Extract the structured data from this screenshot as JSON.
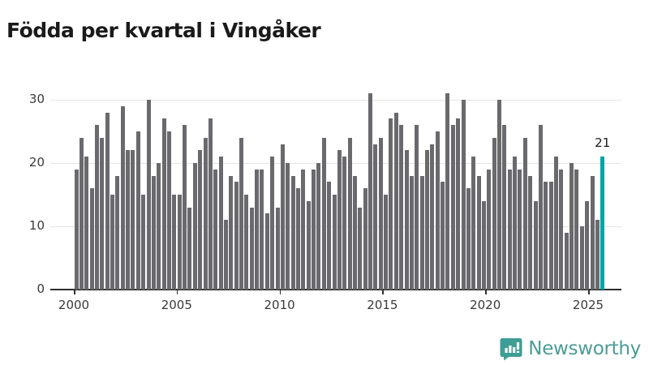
{
  "title": "Födda per kvartal i Vingåker",
  "chart_data": {
    "type": "bar",
    "title": "Födda per kvartal i Vingåker",
    "x_start": "2000-Q1",
    "x_end": "2025-Q3",
    "frequency": "quarterly",
    "categories": [
      "2000-Q1",
      "2000-Q2",
      "2000-Q3",
      "2000-Q4",
      "2001-Q1",
      "2001-Q2",
      "2001-Q3",
      "2001-Q4",
      "2002-Q1",
      "2002-Q2",
      "2002-Q3",
      "2002-Q4",
      "2003-Q1",
      "2003-Q2",
      "2003-Q3",
      "2003-Q4",
      "2004-Q1",
      "2004-Q2",
      "2004-Q3",
      "2004-Q4",
      "2005-Q1",
      "2005-Q2",
      "2005-Q3",
      "2005-Q4",
      "2006-Q1",
      "2006-Q2",
      "2006-Q3",
      "2006-Q4",
      "2007-Q1",
      "2007-Q2",
      "2007-Q3",
      "2007-Q4",
      "2008-Q1",
      "2008-Q2",
      "2008-Q3",
      "2008-Q4",
      "2009-Q1",
      "2009-Q2",
      "2009-Q3",
      "2009-Q4",
      "2010-Q1",
      "2010-Q2",
      "2010-Q3",
      "2010-Q4",
      "2011-Q1",
      "2011-Q2",
      "2011-Q3",
      "2011-Q4",
      "2012-Q1",
      "2012-Q2",
      "2012-Q3",
      "2012-Q4",
      "2013-Q1",
      "2013-Q2",
      "2013-Q3",
      "2013-Q4",
      "2014-Q1",
      "2014-Q2",
      "2014-Q3",
      "2014-Q4",
      "2015-Q1",
      "2015-Q2",
      "2015-Q3",
      "2015-Q4",
      "2016-Q1",
      "2016-Q2",
      "2016-Q3",
      "2016-Q4",
      "2017-Q1",
      "2017-Q2",
      "2017-Q3",
      "2017-Q4",
      "2018-Q1",
      "2018-Q2",
      "2018-Q3",
      "2018-Q4",
      "2019-Q1",
      "2019-Q2",
      "2019-Q3",
      "2019-Q4",
      "2020-Q1",
      "2020-Q2",
      "2020-Q3",
      "2020-Q4",
      "2021-Q1",
      "2021-Q2",
      "2021-Q3",
      "2021-Q4",
      "2022-Q1",
      "2022-Q2",
      "2022-Q3",
      "2022-Q4",
      "2023-Q1",
      "2023-Q2",
      "2023-Q3",
      "2023-Q4",
      "2024-Q1",
      "2024-Q2",
      "2024-Q3",
      "2024-Q4",
      "2025-Q1",
      "2025-Q2",
      "2025-Q3"
    ],
    "series": [
      {
        "name": "Födda",
        "values": [
          19,
          24,
          21,
          16,
          26,
          24,
          28,
          15,
          18,
          29,
          22,
          22,
          25,
          15,
          30,
          18,
          20,
          27,
          25,
          15,
          15,
          26,
          13,
          20,
          22,
          24,
          27,
          19,
          21,
          11,
          18,
          17,
          24,
          15,
          13,
          19,
          19,
          12,
          21,
          13,
          23,
          20,
          18,
          16,
          19,
          14,
          19,
          20,
          24,
          17,
          15,
          22,
          21,
          24,
          18,
          13,
          16,
          31,
          23,
          24,
          15,
          27,
          28,
          26,
          22,
          18,
          26,
          18,
          22,
          23,
          25,
          17,
          31,
          26,
          27,
          30,
          16,
          21,
          18,
          14,
          19,
          24,
          30,
          26,
          19,
          21,
          19,
          24,
          18,
          14,
          26,
          17,
          17,
          21,
          19,
          9,
          20,
          19,
          10,
          14,
          18,
          11,
          21
        ]
      }
    ],
    "highlight": {
      "index": 102,
      "value": 21,
      "label": "21"
    },
    "x_tick_labels": [
      "2000",
      "2005",
      "2010",
      "2015",
      "2020",
      "2025"
    ],
    "y_tick_labels": [
      "0",
      "10",
      "20",
      "30"
    ],
    "y_tick_values": [
      0,
      10,
      20,
      30
    ],
    "ylim": [
      0,
      31
    ],
    "grid": "horizontal",
    "legend_position": "none",
    "bar_color": "#6a6a6e",
    "highlight_color": "#00a5a4",
    "label_color": "#1a1a1a"
  },
  "branding": {
    "logo_text": "Newsworthy",
    "logo_icon": "speech-bubble-bar-chart-icon",
    "color": "#3f9d96"
  }
}
